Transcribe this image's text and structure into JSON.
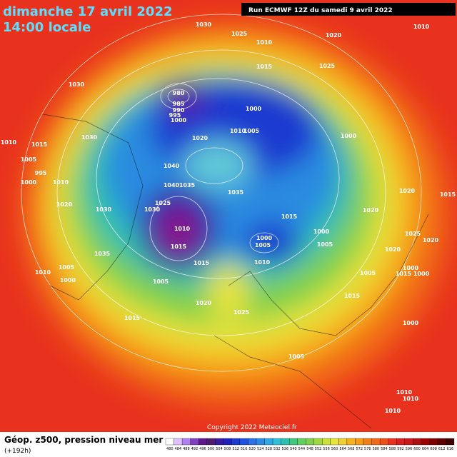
{
  "header": {
    "date": "dimanche 17 avril 2022",
    "time": "14:00 locale",
    "run": "Run ECMWF 12Z du samedi 9 avril 2022"
  },
  "map": {
    "isobar_labels": [
      "1030",
      "1025",
      "1010",
      "1020",
      "1010",
      "1030",
      "980",
      "985",
      "990",
      "995",
      "1000",
      "1000",
      "1015",
      "1025",
      "1010",
      "1015",
      "1005",
      "995",
      "1000",
      "1030",
      "1020",
      "1010",
      "1005",
      "1000",
      "1040",
      "1040",
      "1035",
      "1035",
      "1010",
      "1020",
      "1030",
      "1030",
      "1025",
      "1010",
      "1015",
      "1035",
      "1015",
      "1000",
      "1005",
      "1000",
      "1005",
      "1010",
      "1005",
      "1010",
      "1000",
      "1005",
      "1015",
      "1020",
      "1025",
      "1015",
      "1015",
      "1005",
      "1000",
      "1005",
      "1015",
      "1000",
      "1000",
      "1020",
      "1015",
      "1010",
      "1010",
      "1010",
      "1020",
      "1020",
      "1025",
      "1020"
    ],
    "copyright": "Copyright 2022 Meteociel.fr"
  },
  "footer": {
    "title": "Géop. z500, pression niveau mer",
    "lead": "(+192h)",
    "scale": [
      480,
      484,
      488,
      492,
      496,
      500,
      504,
      508,
      512,
      516,
      520,
      524,
      528,
      532,
      536,
      540,
      544,
      548,
      552,
      556,
      560,
      564,
      568,
      572,
      576,
      580,
      584,
      588,
      592,
      596,
      600,
      604,
      608,
      612,
      616
    ]
  }
}
